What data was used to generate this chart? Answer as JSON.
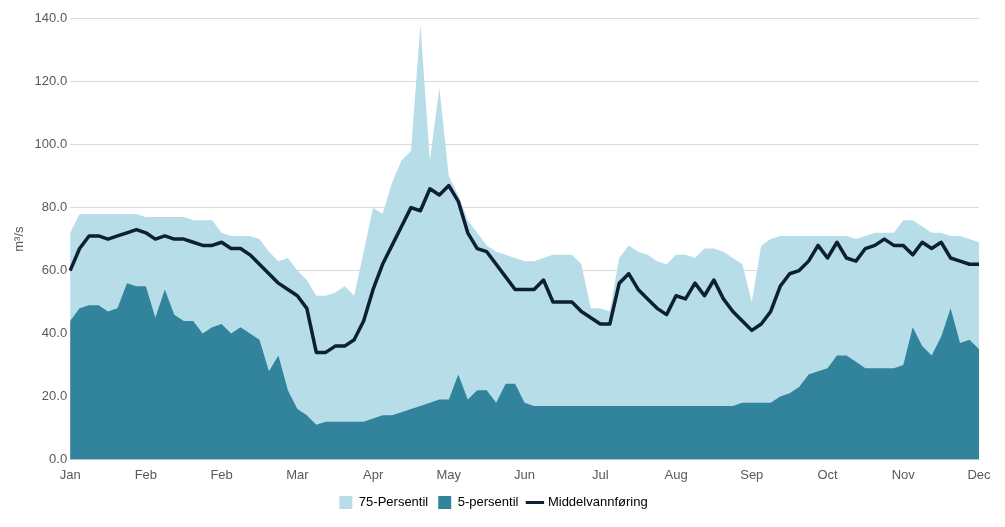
{
  "chart_data": {
    "type": "area",
    "ylabel": "m³/s",
    "categories": [
      "Jan",
      null,
      null,
      null,
      null,
      null,
      null,
      null,
      "Feb",
      null,
      null,
      null,
      null,
      null,
      null,
      null,
      "Feb",
      null,
      null,
      null,
      null,
      null,
      null,
      null,
      "Mar",
      null,
      null,
      null,
      null,
      null,
      null,
      null,
      "Apr",
      null,
      null,
      null,
      null,
      null,
      null,
      null,
      "May",
      null,
      null,
      null,
      null,
      null,
      null,
      null,
      "Jun",
      null,
      null,
      null,
      null,
      null,
      null,
      null,
      "Jul",
      null,
      null,
      null,
      null,
      null,
      null,
      null,
      "Aug",
      null,
      null,
      null,
      null,
      null,
      null,
      null,
      "Sep",
      null,
      null,
      null,
      null,
      null,
      null,
      null,
      "Oct",
      null,
      null,
      null,
      null,
      null,
      null,
      null,
      "Nov",
      null,
      null,
      null,
      null,
      null,
      null,
      null,
      "Dec"
    ],
    "series": [
      {
        "name": "75-Persentil",
        "type": "area",
        "color": "#b7dde9",
        "values": [
          72,
          78,
          78,
          78,
          78,
          78,
          78,
          78,
          77,
          77,
          77,
          77,
          77,
          76,
          76,
          76,
          72,
          71,
          71,
          71,
          70,
          66,
          63,
          64,
          60,
          57,
          52,
          52,
          53,
          55,
          52,
          66,
          80,
          78,
          88,
          95,
          98,
          138,
          95,
          118,
          90,
          84,
          76,
          72,
          68,
          66,
          65,
          64,
          63,
          63,
          64,
          65,
          65,
          65,
          62,
          48,
          48,
          47,
          64,
          68,
          66,
          65,
          63,
          62,
          65,
          65,
          64,
          67,
          67,
          66,
          64,
          62,
          50,
          68,
          70,
          71,
          71,
          71,
          71,
          71,
          71,
          71,
          71,
          70,
          71,
          72,
          72,
          72,
          76,
          76,
          74,
          72,
          72,
          71,
          71,
          70,
          69
        ]
      },
      {
        "name": "5-persentil",
        "type": "area",
        "color": "#31849b",
        "values": [
          44,
          48,
          49,
          49,
          47,
          48,
          56,
          55,
          55,
          45,
          54,
          46,
          44,
          44,
          40,
          42,
          43,
          40,
          42,
          40,
          38,
          28,
          33,
          22,
          16,
          14,
          11,
          12,
          12,
          12,
          12,
          12,
          13,
          14,
          14,
          15,
          16,
          17,
          18,
          19,
          19,
          27,
          19,
          22,
          22,
          18,
          24,
          24,
          18,
          17,
          17,
          17,
          17,
          17,
          17,
          17,
          17,
          17,
          17,
          17,
          17,
          17,
          17,
          17,
          17,
          17,
          17,
          17,
          17,
          17,
          17,
          18,
          18,
          18,
          18,
          20,
          21,
          23,
          27,
          28,
          29,
          33,
          33,
          31,
          29,
          29,
          29,
          29,
          30,
          42,
          36,
          33,
          39,
          48,
          37,
          38,
          35
        ]
      },
      {
        "name": "Middelvannføring",
        "type": "line",
        "color": "#0d1f33",
        "values": [
          60,
          67,
          71,
          71,
          70,
          71,
          72,
          73,
          72,
          70,
          71,
          70,
          70,
          69,
          68,
          68,
          69,
          67,
          67,
          65,
          62,
          59,
          56,
          54,
          52,
          48,
          34,
          34,
          36,
          36,
          38,
          44,
          54,
          62,
          68,
          74,
          80,
          79,
          86,
          84,
          87,
          82,
          72,
          67,
          66,
          62,
          58,
          54,
          54,
          54,
          57,
          50,
          50,
          50,
          47,
          45,
          43,
          43,
          56,
          59,
          54,
          51,
          48,
          46,
          52,
          51,
          56,
          52,
          57,
          51,
          47,
          44,
          41,
          43,
          47,
          55,
          59,
          60,
          63,
          68,
          64,
          69,
          64,
          63,
          67,
          68,
          70,
          68,
          68,
          65,
          69,
          67,
          69,
          64,
          63,
          62,
          62
        ]
      }
    ],
    "ylim": [
      0,
      140
    ],
    "yticks": [
      {
        "value": 0,
        "label": "0.0"
      },
      {
        "value": 20,
        "label": "20.0"
      },
      {
        "value": 40,
        "label": "40.0"
      },
      {
        "value": 60,
        "label": "60.0"
      },
      {
        "value": 80,
        "label": "80.0"
      },
      {
        "value": 100,
        "label": "100.0"
      },
      {
        "value": 120,
        "label": "120.0"
      },
      {
        "value": 140,
        "label": "140.0"
      }
    ],
    "grid": "y",
    "legend": "bottom",
    "marker": "none",
    "line_style": "solid"
  }
}
